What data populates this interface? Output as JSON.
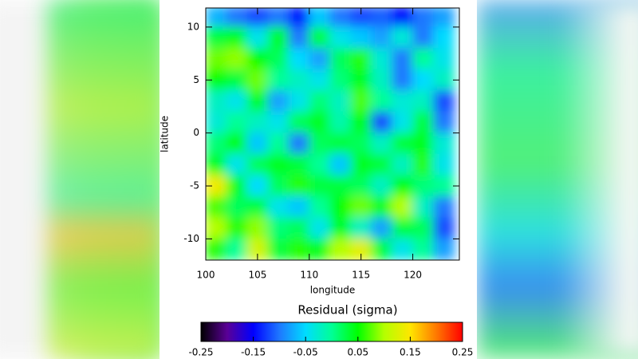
{
  "chart_data": {
    "type": "heatmap",
    "xlabel": "longitude",
    "ylabel": "latitude",
    "colorbar_title": "Residual (sigma)",
    "xlim": [
      100,
      124.5
    ],
    "xticks": [
      100,
      105,
      110,
      115,
      120
    ],
    "ylim": [
      -12,
      11.8
    ],
    "yticks": [
      -10,
      -5,
      0,
      5,
      10
    ],
    "clim": [
      -0.25,
      0.25
    ],
    "cticks": [
      -0.25,
      -0.15,
      -0.05,
      0.05,
      0.15,
      0.25
    ],
    "colorscale": [
      "#000000",
      "#5a0096",
      "#0000ff",
      "#1e78ff",
      "#00dcff",
      "#00ff96",
      "#00ff00",
      "#b4ff00",
      "#ffe600",
      "#ff7800",
      "#ff0000"
    ],
    "x": [
      101,
      103,
      105,
      107,
      109,
      111,
      113,
      115,
      117,
      119,
      121,
      123
    ],
    "y": [
      11,
      9,
      7,
      5,
      3,
      1,
      -1,
      -3,
      -5,
      -7,
      -9,
      -11
    ],
    "z": [
      [
        -0.07,
        -0.1,
        -0.12,
        -0.1,
        -0.14,
        -0.06,
        -0.1,
        -0.12,
        -0.11,
        -0.15,
        -0.1,
        -0.08
      ],
      [
        0.03,
        0.04,
        -0.04,
        0.04,
        -0.1,
        0.03,
        -0.04,
        -0.06,
        -0.08,
        -0.03,
        -0.1,
        -0.05
      ],
      [
        0.08,
        0.09,
        0.05,
        0.02,
        -0.05,
        -0.08,
        0.02,
        0.06,
        -0.03,
        -0.1,
        0.0,
        -0.04
      ],
      [
        0.05,
        0.03,
        0.08,
        0.0,
        -0.02,
        -0.04,
        0.01,
        0.04,
        -0.02,
        -0.1,
        -0.05,
        -0.02
      ],
      [
        -0.02,
        -0.04,
        0.04,
        -0.08,
        -0.04,
        0.01,
        -0.02,
        0.07,
        0.0,
        -0.03,
        -0.02,
        -0.12
      ],
      [
        -0.03,
        0.0,
        -0.02,
        -0.04,
        0.02,
        0.04,
        -0.01,
        0.05,
        -0.12,
        -0.04,
        0.03,
        -0.1
      ],
      [
        0.01,
        0.05,
        -0.06,
        0.0,
        -0.1,
        0.02,
        0.03,
        0.02,
        -0.02,
        0.03,
        0.04,
        -0.03
      ],
      [
        0.04,
        -0.04,
        0.02,
        0.04,
        0.03,
        0.0,
        -0.06,
        0.04,
        0.03,
        -0.02,
        0.06,
        -0.04
      ],
      [
        0.14,
        0.04,
        -0.05,
        0.02,
        0.06,
        0.03,
        0.03,
        0.02,
        -0.02,
        0.05,
        0.01,
        0.0
      ],
      [
        0.07,
        0.02,
        0.03,
        -0.04,
        -0.06,
        0.0,
        0.05,
        0.08,
        0.04,
        0.1,
        -0.02,
        -0.1
      ],
      [
        0.1,
        0.06,
        0.09,
        0.01,
        0.02,
        -0.04,
        0.04,
        -0.02,
        -0.08,
        0.03,
        0.02,
        -0.12
      ],
      [
        0.06,
        0.0,
        0.12,
        0.03,
        0.06,
        0.04,
        0.1,
        0.13,
        0.03,
        -0.04,
        0.0,
        -0.08
      ]
    ]
  }
}
